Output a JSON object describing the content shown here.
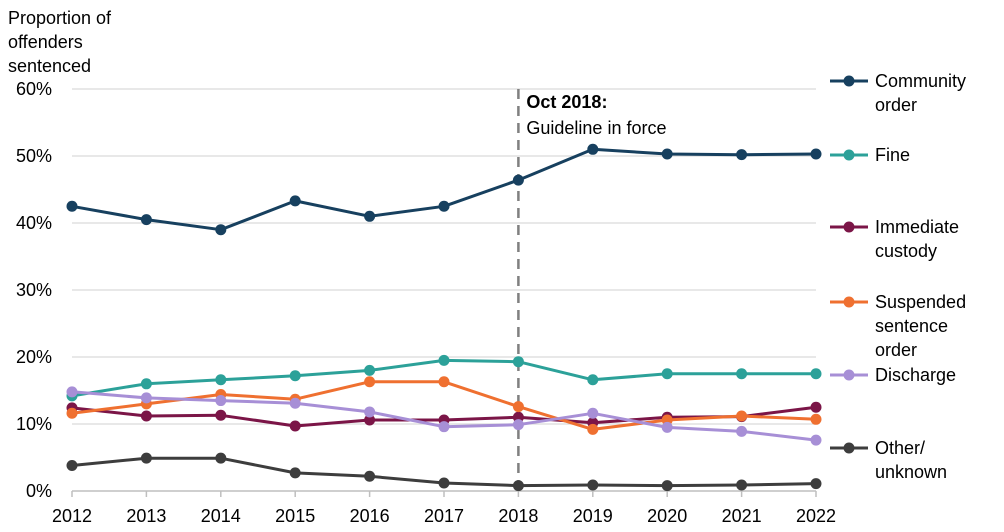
{
  "chart_data": {
    "type": "line",
    "ylabel_lines": [
      "Proportion of",
      "offenders",
      "sentenced"
    ],
    "x": [
      "2012",
      "2013",
      "2014",
      "2015",
      "2016",
      "2017",
      "2018",
      "2019",
      "2020",
      "2021",
      "2022"
    ],
    "ylim": [
      0,
      60
    ],
    "yticks": [
      0,
      10,
      20,
      30,
      40,
      50,
      60
    ],
    "ytick_labels": [
      "0%",
      "10%",
      "20%",
      "30%",
      "40%",
      "50%",
      "60%"
    ],
    "grid": true,
    "annotation": {
      "x": "2018",
      "title": "Oct 2018:",
      "text": "Guideline in force"
    },
    "series": [
      {
        "name": "Community order",
        "legend_lines": [
          "Community",
          "order"
        ],
        "color": "#17405f",
        "values": [
          42.5,
          40.5,
          39.0,
          43.3,
          41.0,
          42.5,
          46.4,
          51.0,
          50.3,
          50.2,
          50.3
        ]
      },
      {
        "name": "Fine",
        "legend_lines": [
          "Fine"
        ],
        "color": "#2ca199",
        "values": [
          14.2,
          16.0,
          16.6,
          17.2,
          18.0,
          19.5,
          19.3,
          16.6,
          17.5,
          17.5,
          17.5
        ]
      },
      {
        "name": "Immediate custody",
        "legend_lines": [
          "Immediate",
          "custody"
        ],
        "color": "#7b1547",
        "values": [
          12.4,
          11.2,
          11.3,
          9.7,
          10.6,
          10.6,
          11.0,
          10.2,
          11.0,
          11.1,
          12.5
        ]
      },
      {
        "name": "Suspended sentence order",
        "legend_lines": [
          "Suspended",
          "sentence",
          "order"
        ],
        "color": "#ef7030",
        "values": [
          11.6,
          13.0,
          14.4,
          13.7,
          16.3,
          16.3,
          12.6,
          9.2,
          10.6,
          11.2,
          10.7
        ]
      },
      {
        "name": "Discharge",
        "legend_lines": [
          "Discharge"
        ],
        "color": "#a78fd6",
        "values": [
          14.8,
          13.9,
          13.5,
          13.1,
          11.8,
          9.6,
          9.9,
          11.6,
          9.5,
          8.9,
          7.6
        ]
      },
      {
        "name": "Other/unknown",
        "legend_lines": [
          "Other/",
          "unknown"
        ],
        "color": "#3d3d3d",
        "values": [
          3.8,
          4.9,
          4.9,
          2.7,
          2.2,
          1.2,
          0.8,
          0.9,
          0.8,
          0.9,
          1.1
        ]
      }
    ]
  }
}
